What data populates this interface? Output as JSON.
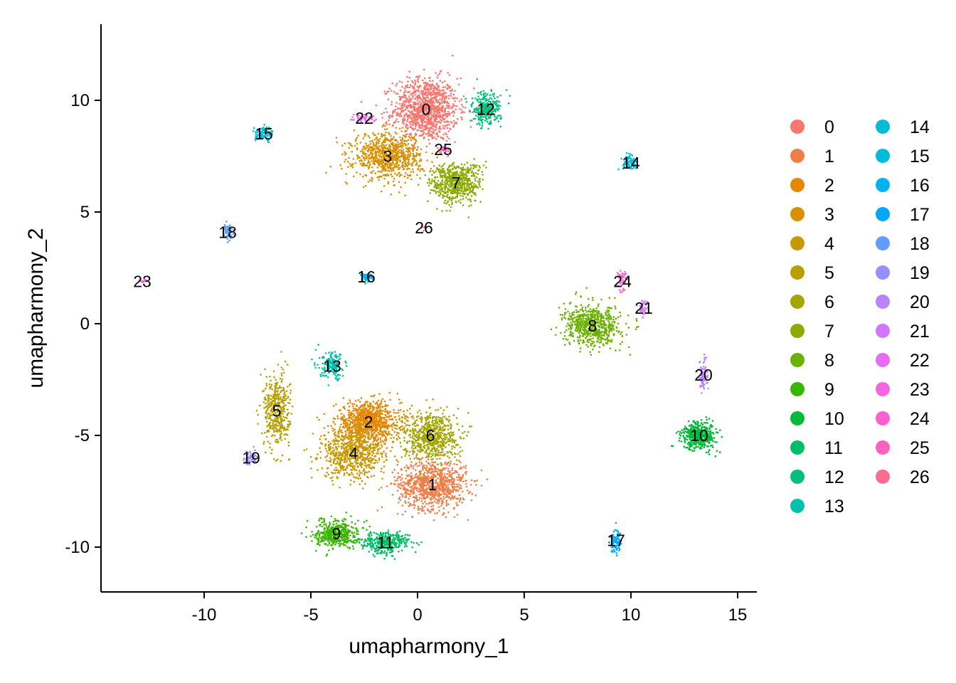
{
  "chart_data": {
    "type": "scatter",
    "xlabel": "umapharmony_1",
    "ylabel": "umapharmony_2",
    "xlim": [
      -14.5,
      16
    ],
    "ylim": [
      -12,
      13.5
    ],
    "x_ticks": [
      -10,
      -5,
      0,
      5,
      10,
      15
    ],
    "x_tick_labels": [
      "-10",
      "-5",
      "0",
      "5",
      "10",
      "15"
    ],
    "y_ticks": [
      -10,
      -5,
      0,
      5,
      10
    ],
    "y_tick_labels": [
      "-10",
      "-5",
      "0",
      "5",
      "10"
    ],
    "grid": false,
    "legend_position": "right",
    "clusters": [
      {
        "label": "0",
        "color": "#F8766D",
        "center": [
          0.4,
          9.6
        ],
        "spread": [
          1.5,
          1.4
        ],
        "n": 1100
      },
      {
        "label": "1",
        "color": "#EF7F49",
        "center": [
          0.7,
          -7.2
        ],
        "spread": [
          1.6,
          1.1
        ],
        "n": 900
      },
      {
        "label": "2",
        "color": "#E58700",
        "center": [
          -2.3,
          -4.4
        ],
        "spread": [
          1.5,
          0.9
        ],
        "n": 900
      },
      {
        "label": "3",
        "color": "#D89000",
        "center": [
          -1.4,
          7.5
        ],
        "spread": [
          1.6,
          1.0
        ],
        "n": 800
      },
      {
        "label": "4",
        "color": "#C99800",
        "center": [
          -3.0,
          -5.8
        ],
        "spread": [
          1.5,
          1.1
        ],
        "n": 700
      },
      {
        "label": "5",
        "color": "#B79F00",
        "center": [
          -6.6,
          -3.9
        ],
        "spread": [
          0.6,
          1.6
        ],
        "n": 420
      },
      {
        "label": "6",
        "color": "#A3A500",
        "center": [
          0.6,
          -5.0
        ],
        "spread": [
          1.3,
          1.1
        ],
        "n": 650
      },
      {
        "label": "7",
        "color": "#8BAB00",
        "center": [
          1.8,
          6.3
        ],
        "spread": [
          1.2,
          0.9
        ],
        "n": 600
      },
      {
        "label": "8",
        "color": "#6BB100",
        "center": [
          8.2,
          -0.1
        ],
        "spread": [
          1.3,
          0.9
        ],
        "n": 650
      },
      {
        "label": "9",
        "color": "#39B600",
        "center": [
          -3.8,
          -9.4
        ],
        "spread": [
          1.0,
          0.6
        ],
        "n": 450
      },
      {
        "label": "10",
        "color": "#00BA38",
        "center": [
          13.2,
          -5.0
        ],
        "spread": [
          0.8,
          0.6
        ],
        "n": 450
      },
      {
        "label": "11",
        "color": "#00BE67",
        "center": [
          -1.5,
          -9.8
        ],
        "spread": [
          1.1,
          0.5
        ],
        "n": 350
      },
      {
        "label": "12",
        "color": "#00BF7D",
        "center": [
          3.2,
          9.6
        ],
        "spread": [
          0.7,
          0.7
        ],
        "n": 280
      },
      {
        "label": "13",
        "color": "#00C0AF",
        "center": [
          -4.0,
          -1.9
        ],
        "spread": [
          0.6,
          0.6
        ],
        "n": 160
      },
      {
        "label": "14",
        "color": "#00BCD8",
        "center": [
          10.0,
          7.2
        ],
        "spread": [
          0.4,
          0.3
        ],
        "n": 90
      },
      {
        "label": "15",
        "color": "#00BBDB",
        "center": [
          -7.2,
          8.5
        ],
        "spread": [
          0.4,
          0.3
        ],
        "n": 100
      },
      {
        "label": "16",
        "color": "#00B2F3",
        "center": [
          -2.4,
          2.1
        ],
        "spread": [
          0.3,
          0.2
        ],
        "n": 60
      },
      {
        "label": "17",
        "color": "#00A7FF",
        "center": [
          9.3,
          -9.7
        ],
        "spread": [
          0.3,
          0.5
        ],
        "n": 90
      },
      {
        "label": "18",
        "color": "#619CFF",
        "center": [
          -8.9,
          4.1
        ],
        "spread": [
          0.2,
          0.4
        ],
        "n": 60
      },
      {
        "label": "19",
        "color": "#9590FF",
        "center": [
          -7.8,
          -6.0
        ],
        "spread": [
          0.3,
          0.3
        ],
        "n": 50
      },
      {
        "label": "20",
        "color": "#B983FF",
        "center": [
          13.4,
          -2.3
        ],
        "spread": [
          0.2,
          0.8
        ],
        "n": 90
      },
      {
        "label": "21",
        "color": "#D376FF",
        "center": [
          10.6,
          0.7
        ],
        "spread": [
          0.3,
          0.3
        ],
        "n": 40
      },
      {
        "label": "22",
        "color": "#E76BF3",
        "center": [
          -2.5,
          9.2
        ],
        "spread": [
          0.6,
          0.2
        ],
        "n": 60
      },
      {
        "label": "23",
        "color": "#F564E3",
        "center": [
          -12.9,
          1.9
        ],
        "spread": [
          0.2,
          0.1
        ],
        "n": 15
      },
      {
        "label": "24",
        "color": "#FD61D1",
        "center": [
          9.6,
          1.9
        ],
        "spread": [
          0.3,
          0.4
        ],
        "n": 50
      },
      {
        "label": "25",
        "color": "#FF62BC",
        "center": [
          1.2,
          7.8
        ],
        "spread": [
          0.2,
          0.2
        ],
        "n": 25
      },
      {
        "label": "26",
        "color": "#FF6C91",
        "center": [
          0.3,
          4.3
        ],
        "spread": [
          0.1,
          0.1
        ],
        "n": 6
      }
    ]
  }
}
